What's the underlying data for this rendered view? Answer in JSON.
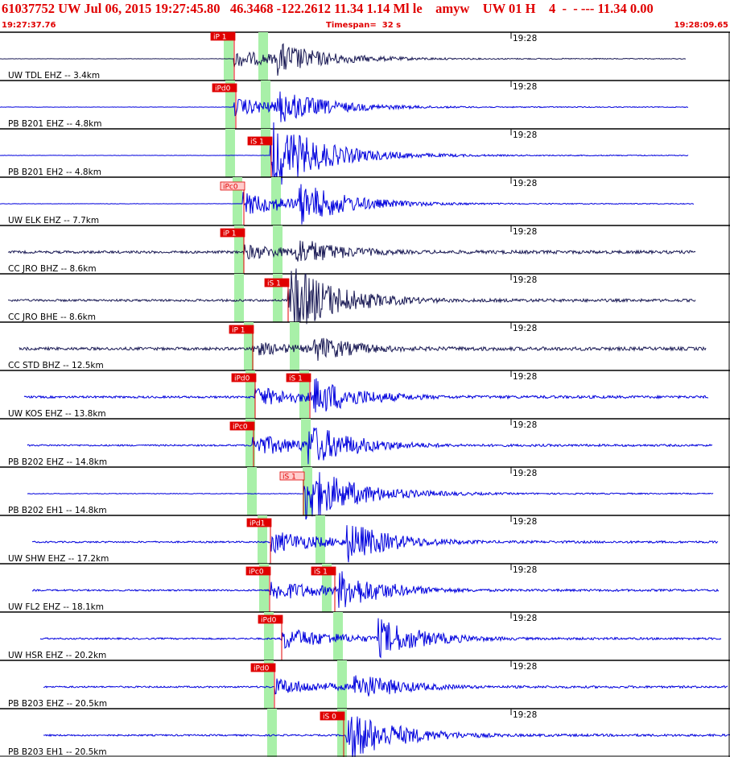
{
  "header": {
    "title": "61037752 UW Jul 06, 2015 19:27:45.80   46.3468 -122.2612 11.34 1.14 Ml le    amyw    UW 01 H    4  -  - --- 11.34 0.00",
    "start_time": "19:27:37.76",
    "timespan": "Timespan=  32 s",
    "end_time": "19:28:09.65"
  },
  "colors": {
    "accent": "#e00000",
    "trace_blue": "#0000dd",
    "trace_navy": "#1a1a55",
    "pick_fill": "#e00000",
    "pick_fill_light": "#ffcccc",
    "window_green": "#a8f0a8",
    "grid": "#000000"
  },
  "time_axis": {
    "tick_label": "19:28"
  },
  "traces": [
    {
      "label": "UW TDL EHZ -- 3.4km",
      "color": "navy",
      "picks": [
        {
          "label": "iP 1",
          "style": "solid"
        }
      ]
    },
    {
      "label": "PB B201 EHZ -- 4.8km",
      "color": "blue",
      "picks": [
        {
          "label": "iPd0",
          "style": "solid"
        }
      ]
    },
    {
      "label": "PB B201 EH2 -- 4.8km",
      "color": "blue",
      "picks": [
        {
          "label": "iS 1",
          "style": "solid"
        }
      ]
    },
    {
      "label": "UW ELK EHZ -- 7.7km",
      "color": "blue",
      "picks": [
        {
          "label": "iPc0",
          "style": "light"
        }
      ]
    },
    {
      "label": "CC JRO BHZ -- 8.6km",
      "color": "navy",
      "picks": [
        {
          "label": "iP 1",
          "style": "solid"
        }
      ]
    },
    {
      "label": "CC JRO BHE -- 8.6km",
      "color": "navy",
      "picks": [
        {
          "label": "iS 1",
          "style": "solid"
        }
      ]
    },
    {
      "label": "CC STD BHZ -- 12.5km",
      "color": "navy",
      "picks": [
        {
          "label": "iP 1",
          "style": "solid"
        }
      ]
    },
    {
      "label": "UW KOS EHZ -- 13.8km",
      "color": "blue",
      "picks": [
        {
          "label": "iPd0",
          "style": "solid"
        },
        {
          "label": "iS 1",
          "style": "solid"
        }
      ]
    },
    {
      "label": "PB B202 EHZ -- 14.8km",
      "color": "blue",
      "picks": [
        {
          "label": "iPc0",
          "style": "solid"
        }
      ]
    },
    {
      "label": "PB B202 EH1 -- 14.8km",
      "color": "blue",
      "picks": [
        {
          "label": "iS 1",
          "style": "light"
        }
      ]
    },
    {
      "label": "UW SHW EHZ -- 17.2km",
      "color": "blue",
      "picks": [
        {
          "label": "iPd1",
          "style": "solid"
        }
      ]
    },
    {
      "label": "UW FL2 EHZ -- 18.1km",
      "color": "blue",
      "picks": [
        {
          "label": "iPc0",
          "style": "solid"
        },
        {
          "label": "iS 1",
          "style": "solid"
        }
      ]
    },
    {
      "label": "UW HSR EHZ -- 20.2km",
      "color": "blue",
      "picks": [
        {
          "label": "iPd0",
          "style": "solid"
        }
      ]
    },
    {
      "label": "PB B203 EHZ -- 20.5km",
      "color": "blue",
      "picks": [
        {
          "label": "iPd0",
          "style": "solid"
        }
      ]
    },
    {
      "label": "PB B203 EH1 -- 20.5km",
      "color": "blue",
      "picks": [
        {
          "label": "iS 0",
          "style": "solid"
        }
      ]
    }
  ]
}
